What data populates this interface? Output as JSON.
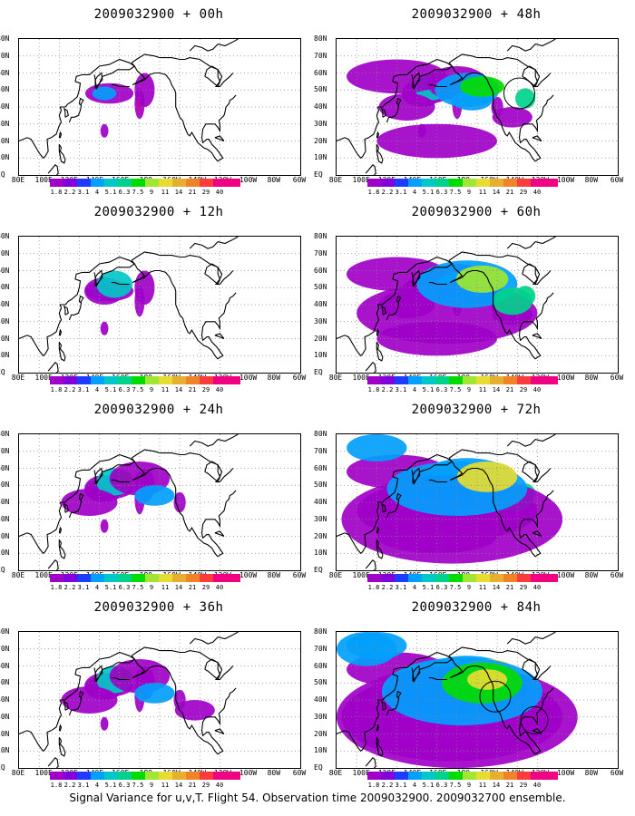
{
  "panels": [
    {
      "title": "2009032900 + 00h",
      "col": 0,
      "row": 0,
      "level": 1
    },
    {
      "title": "2009032900 + 12h",
      "col": 0,
      "row": 1,
      "level": 2
    },
    {
      "title": "2009032900 + 24h",
      "col": 0,
      "row": 2,
      "level": 3
    },
    {
      "title": "2009032900 + 36h",
      "col": 0,
      "row": 3,
      "level": 4
    },
    {
      "title": "2009032900 + 48h",
      "col": 1,
      "row": 0,
      "level": 5
    },
    {
      "title": "2009032900 + 60h",
      "col": 1,
      "row": 1,
      "level": 6
    },
    {
      "title": "2009032900 + 72h",
      "col": 1,
      "row": 2,
      "level": 7
    },
    {
      "title": "2009032900 + 84h",
      "col": 1,
      "row": 3,
      "level": 8
    }
  ],
  "lat_labels": [
    "80N",
    "70N",
    "60N",
    "50N",
    "40N",
    "30N",
    "20N",
    "10N",
    "EQ"
  ],
  "lon_labels": [
    "80E",
    "100E",
    "120E",
    "140E",
    "160E",
    "180",
    "160W",
    "140W",
    "120W",
    "100W",
    "80W",
    "60W"
  ],
  "colorbar": {
    "labels": [
      "1.8",
      "2.2",
      "3.1",
      "4",
      "5.1",
      "6.3",
      "7.5",
      "9",
      "11",
      "14",
      "21",
      "29",
      "40"
    ],
    "colors": [
      "#a000c8",
      "#8200dc",
      "#1e3cff",
      "#00a0ff",
      "#00c8c8",
      "#00d28c",
      "#00dc00",
      "#a0e632",
      "#e6dc32",
      "#e6af2d",
      "#f08228",
      "#fa3c3c",
      "#f00082"
    ]
  },
  "caption": "Signal Variance for u,v,T. Flight 54. Observation time 2009032900. 2009032700 ensemble."
}
